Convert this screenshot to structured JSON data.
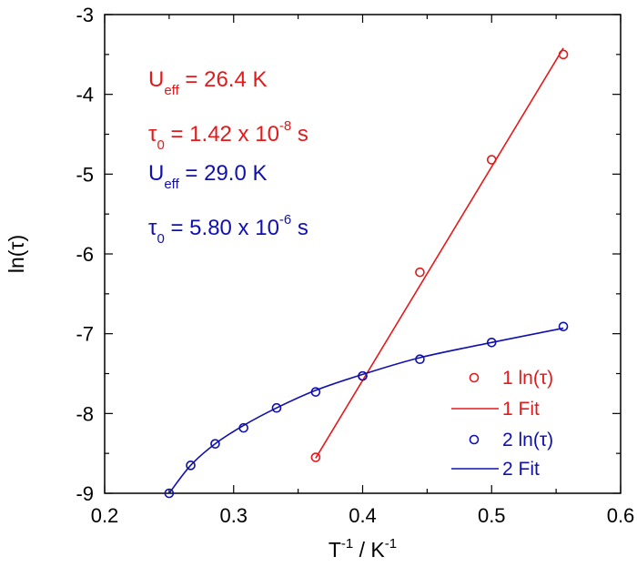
{
  "chart_data": {
    "type": "scatter",
    "title": "",
    "xlabel": {
      "base": "T",
      "sup": "-1",
      "rest": " / K",
      "sup2": "-1"
    },
    "ylabel": "ln(τ)",
    "xlim": [
      0.2,
      0.6
    ],
    "ylim": [
      -9,
      -3
    ],
    "xticks": [
      0.2,
      0.3,
      0.4,
      0.5,
      0.6
    ],
    "xtick_labels": [
      "0.2",
      "0.3",
      "0.4",
      "0.5",
      "0.6"
    ],
    "yticks": [
      -9,
      -8,
      -7,
      -6,
      -5,
      -4,
      -3
    ],
    "ytick_labels": [
      "-9",
      "-8",
      "-7",
      "-6",
      "-5",
      "-4",
      "-3"
    ],
    "grid": false,
    "legend_position": "bottom-right",
    "colors": {
      "series1": "#e31a1c",
      "series2": "#1010b0"
    },
    "series": [
      {
        "name": "1 ln(τ)",
        "kind": "markers",
        "color": "#e31a1c",
        "x": [
          0.3636,
          0.4,
          0.4444,
          0.5,
          0.5556
        ],
        "y": [
          -8.55,
          -7.53,
          -6.23,
          -4.82,
          -3.5
        ]
      },
      {
        "name": "1 Fit",
        "kind": "line",
        "color": "#e31a1c",
        "x": [
          0.3636,
          0.5556
        ],
        "y": [
          -8.56,
          -3.42
        ]
      },
      {
        "name": "2 ln(τ)",
        "kind": "markers",
        "color": "#1010b0",
        "x": [
          0.25,
          0.2667,
          0.2857,
          0.3077,
          0.3333,
          0.3636,
          0.4,
          0.4444,
          0.5,
          0.5556
        ],
        "y": [
          -9.0,
          -8.65,
          -8.38,
          -8.18,
          -7.93,
          -7.73,
          -7.53,
          -7.32,
          -7.11,
          -6.91
        ]
      },
      {
        "name": "2 Fit",
        "kind": "line",
        "color": "#1010b0",
        "x": [
          0.25,
          0.2667,
          0.2857,
          0.3077,
          0.3333,
          0.3636,
          0.4,
          0.4444,
          0.5,
          0.5556
        ],
        "y": [
          -9.0,
          -8.65,
          -8.38,
          -8.15,
          -7.93,
          -7.71,
          -7.51,
          -7.3,
          -7.11,
          -6.93
        ]
      }
    ],
    "annotations": [
      {
        "color": "#e31a1c",
        "base": "U",
        "sub": "eff",
        "rest": " = 26.4 K"
      },
      {
        "color": "#e31a1c",
        "base": "τ",
        "sub": "0",
        "rest": " = 1.42 x 10",
        "sup": "-8",
        "tail": " s"
      },
      {
        "color": "#1010b0",
        "base": "U",
        "sub": "eff",
        "rest": " = 29.0 K"
      },
      {
        "color": "#1010b0",
        "base": "τ",
        "sub": "0",
        "rest": " = 5.80 x 10",
        "sup": "-6",
        "tail": " s"
      }
    ]
  }
}
